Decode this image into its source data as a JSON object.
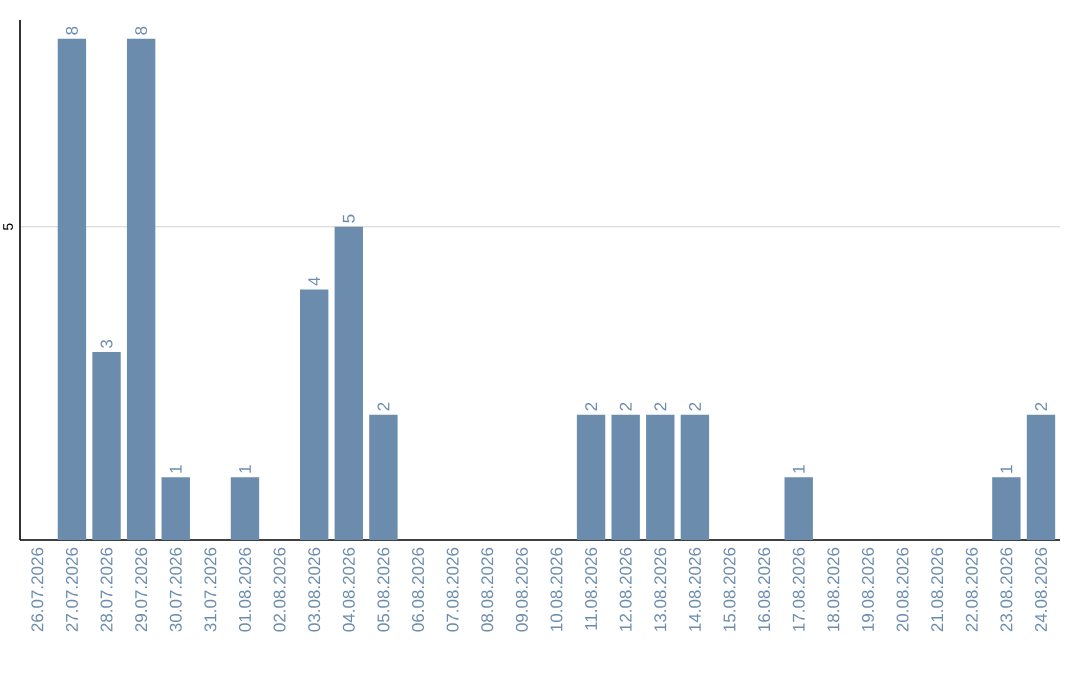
{
  "chart_data": {
    "type": "bar",
    "categories": [
      "26.07.2026",
      "27.07.2026",
      "28.07.2026",
      "29.07.2026",
      "30.07.2026",
      "31.07.2026",
      "01.08.2026",
      "02.08.2026",
      "03.08.2026",
      "04.08.2026",
      "05.08.2026",
      "06.08.2026",
      "07.08.2026",
      "08.08.2026",
      "09.08.2026",
      "10.08.2026",
      "11.08.2026",
      "12.08.2026",
      "13.08.2026",
      "14.08.2026",
      "15.08.2026",
      "16.08.2026",
      "17.08.2026",
      "18.08.2026",
      "19.08.2026",
      "20.08.2026",
      "21.08.2026",
      "22.08.2026",
      "23.08.2026",
      "24.08.2026"
    ],
    "values": [
      0,
      8,
      3,
      8,
      1,
      0,
      1,
      0,
      4,
      5,
      2,
      0,
      0,
      0,
      0,
      0,
      2,
      2,
      2,
      2,
      0,
      0,
      1,
      0,
      0,
      0,
      0,
      0,
      1,
      2
    ],
    "value_labels": [
      null,
      "8",
      "3",
      "8",
      "1",
      null,
      "1",
      null,
      "4",
      "5",
      "2",
      null,
      null,
      null,
      null,
      null,
      "2",
      "2",
      "2",
      "2",
      null,
      null,
      "1",
      null,
      null,
      null,
      null,
      null,
      "1",
      "2"
    ],
    "color": "#6b8cad",
    "ylim": [
      0,
      8.3
    ],
    "yticks": [
      5
    ],
    "grid": "y"
  }
}
